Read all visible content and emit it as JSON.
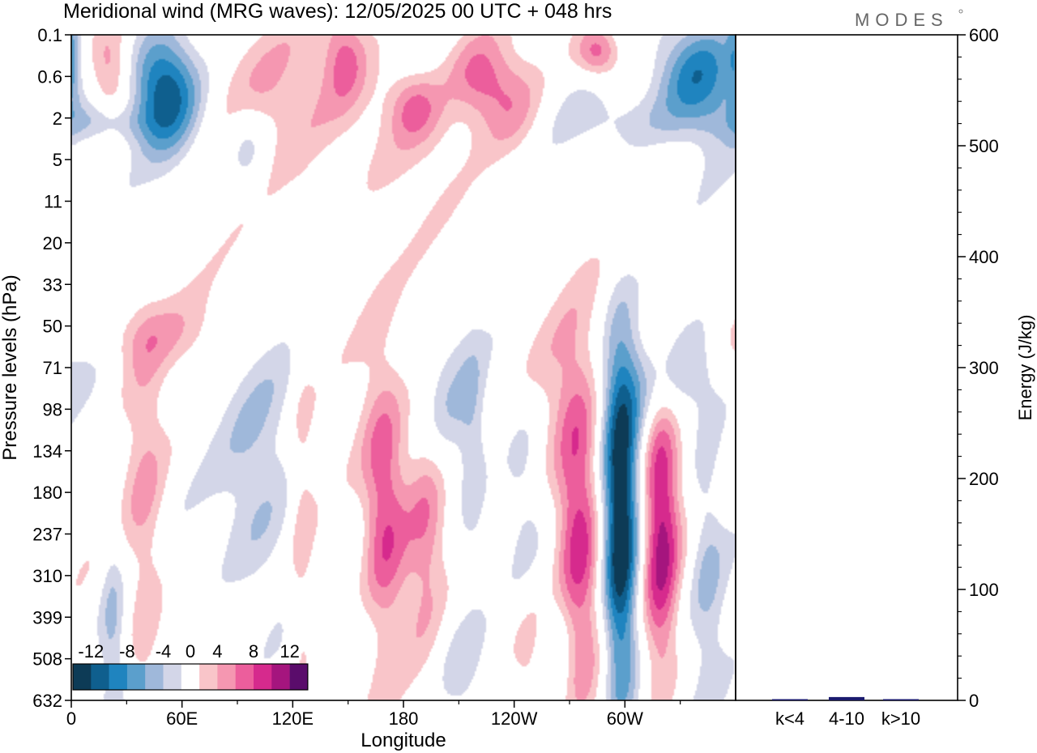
{
  "header": {
    "title": "Meridional wind (MRG waves):  12/05/2025  00 UTC  + 048 hrs",
    "logo": "MODES"
  },
  "chart_data": [
    {
      "type": "heatmap",
      "xlabel": "Longitude",
      "ylabel": "Pressure levels (hPa)",
      "x_ticks": [
        "0",
        "60E",
        "120E",
        "180",
        "120W",
        "60W"
      ],
      "y_ticks": [
        "0.1",
        "0.6",
        "2",
        "5",
        "11",
        "20",
        "33",
        "50",
        "71",
        "98",
        "134",
        "180",
        "237",
        "310",
        "399",
        "508",
        "632"
      ],
      "xlim": [
        0,
        360
      ],
      "colorbar": {
        "tick_labels": [
          "-12",
          "-8",
          "-4",
          "0",
          "4",
          "8",
          "12"
        ],
        "levels": [
          -14,
          -12,
          -10,
          -8,
          -6,
          -4,
          -2,
          2,
          4,
          6,
          8,
          10,
          12,
          14
        ],
        "colors": [
          "#0d3b56",
          "#0f5f8e",
          "#1f84bf",
          "#5b9fcc",
          "#9fb8da",
          "#d3d6e8",
          "#ffffff",
          "#f9c5c9",
          "#f597b1",
          "#ec5e9c",
          "#d62a8d",
          "#a5157e",
          "#5a0c6b"
        ]
      },
      "features": [
        {
          "lon": 0,
          "lev": 0.5,
          "value": -4,
          "dlon": 3,
          "dlev": 0.9
        },
        {
          "lon": 21,
          "lev": 0.9,
          "value": 5,
          "dlon": 8,
          "dlev": 0.8
        },
        {
          "lon": 50,
          "lev": 1.3,
          "value": -12,
          "dlon": 13,
          "dlev": 1.0
        },
        {
          "lon": 18,
          "lev": 2.1,
          "value": -4,
          "dlon": 17,
          "dlev": 0.35
        },
        {
          "lon": 95,
          "lev": 1.0,
          "value": 3,
          "dlon": 25,
          "dlev": 1.3
        },
        {
          "lon": 148,
          "lev": 0.5,
          "value": 5,
          "dlon": 8,
          "dlev": 0.8
        },
        {
          "lon": 160,
          "lev": 2.1,
          "value": 3,
          "dlon": 30,
          "dlev": 1.4
        },
        {
          "lon": 185,
          "lev": 1.7,
          "value": 5,
          "dlon": 10,
          "dlev": 0.6
        },
        {
          "lon": 222,
          "lev": 1.0,
          "value": 5,
          "dlon": 11,
          "dlev": 0.7
        },
        {
          "lon": 240,
          "lev": 1.7,
          "value": 4,
          "dlon": 12,
          "dlev": 0.9
        },
        {
          "lon": 286,
          "lev": 0.4,
          "value": 8,
          "dlon": 9,
          "dlev": 0.45
        },
        {
          "lon": 340,
          "lev": 1.0,
          "value": -10,
          "dlon": 17,
          "dlev": 1.0
        },
        {
          "lon": 300,
          "lev": 2.1,
          "value": -3,
          "dlon": 22,
          "dlev": 0.5
        },
        {
          "lon": 95,
          "lev": 2.6,
          "value": -4,
          "dlon": 8,
          "dlev": 0.7
        },
        {
          "lon": 35,
          "lev": 7.2,
          "value": 3,
          "dlon": 35,
          "dlev": 0.6
        },
        {
          "lon": 265,
          "lev": 8.2,
          "value": 3,
          "dlon": 28,
          "dlev": 1.0
        },
        {
          "lon": 318,
          "lev": 8.3,
          "value": -4,
          "dlon": 35,
          "dlev": 0.9
        },
        {
          "lon": 205,
          "lev": 8.9,
          "value": -3,
          "dlon": 18,
          "dlev": 1.5
        },
        {
          "lon": 40,
          "lev": 12.6,
          "value": 4,
          "dlon": 8,
          "dlev": 4.3
        },
        {
          "lon": 103,
          "lev": 11.2,
          "value": -4,
          "dlon": 15,
          "dlev": 2.6
        },
        {
          "lon": 125,
          "lev": 12.3,
          "value": 3,
          "dlon": 5,
          "dlev": 4.0
        },
        {
          "lon": 170,
          "lev": 11.4,
          "value": 9,
          "dlon": 9,
          "dlev": 2.3
        },
        {
          "lon": 192,
          "lev": 11.5,
          "value": 6,
          "dlon": 8,
          "dlev": 2.0
        },
        {
          "lon": 218,
          "lev": 10.5,
          "value": -3,
          "dlon": 5,
          "dlev": 2.0
        },
        {
          "lon": 245,
          "lev": 12.5,
          "value": -4,
          "dlon": 8,
          "dlev": 3.4
        },
        {
          "lon": 275,
          "lev": 11.9,
          "value": 10,
          "dlon": 9,
          "dlev": 2.7
        },
        {
          "lon": 298,
          "lev": 11.9,
          "value": -15,
          "dlon": 7,
          "dlev": 3.1
        },
        {
          "lon": 320,
          "lev": 11.8,
          "value": 10,
          "dlon": 7,
          "dlev": 2.6
        },
        {
          "lon": 345,
          "lev": 12.3,
          "value": -4,
          "dlon": 7,
          "dlev": 2.5
        },
        {
          "lon": 248,
          "lev": 14.9,
          "value": 7,
          "dlon": 9,
          "dlev": 1.7
        },
        {
          "lon": 262,
          "lev": 15.2,
          "value": -4,
          "dlon": 8,
          "dlev": 1.4
        },
        {
          "lon": 22,
          "lev": 14.2,
          "value": -4,
          "dlon": 5,
          "dlev": 1.8
        },
        {
          "lon": 210,
          "lev": 15.0,
          "value": -3,
          "dlon": 10,
          "dlev": 1.3
        }
      ]
    },
    {
      "type": "bar",
      "categories": [
        "k<4",
        "4-10",
        "k>10"
      ],
      "values": [
        0,
        3,
        0
      ],
      "ylabel": "Energy (J/kg)",
      "ylim": [
        0,
        600
      ],
      "y_ticks": [
        "0",
        "100",
        "200",
        "300",
        "400",
        "500",
        "600"
      ],
      "bar_color": "#1a1a6e"
    }
  ]
}
